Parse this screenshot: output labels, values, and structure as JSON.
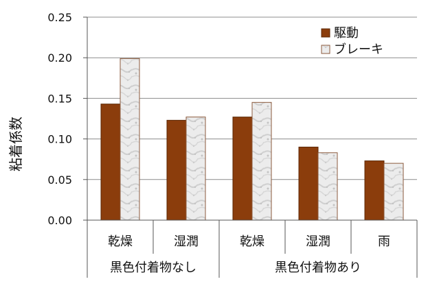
{
  "chart_data": {
    "type": "bar",
    "ylabel": "粘着係数",
    "ylim": [
      0,
      0.25
    ],
    "yticks": [
      "0.25",
      "0.20",
      "0.15",
      "0.10",
      "0.05",
      "0.00"
    ],
    "grid": true,
    "legend_position": "top-right",
    "categories": [
      "乾燥",
      "湿潤",
      "乾燥",
      "湿潤",
      "雨"
    ],
    "groups": [
      {
        "label": "黒色付着物なし",
        "span": 2
      },
      {
        "label": "黒色付着物あり",
        "span": 3
      }
    ],
    "series": [
      {
        "name": "駆動",
        "values": [
          0.143,
          0.123,
          0.127,
          0.09,
          0.073
        ],
        "color": "#8b3d0c"
      },
      {
        "name": "ブレーキ",
        "values": [
          0.199,
          0.127,
          0.145,
          0.083,
          0.07
        ],
        "color": "#e6e6e6"
      }
    ]
  }
}
